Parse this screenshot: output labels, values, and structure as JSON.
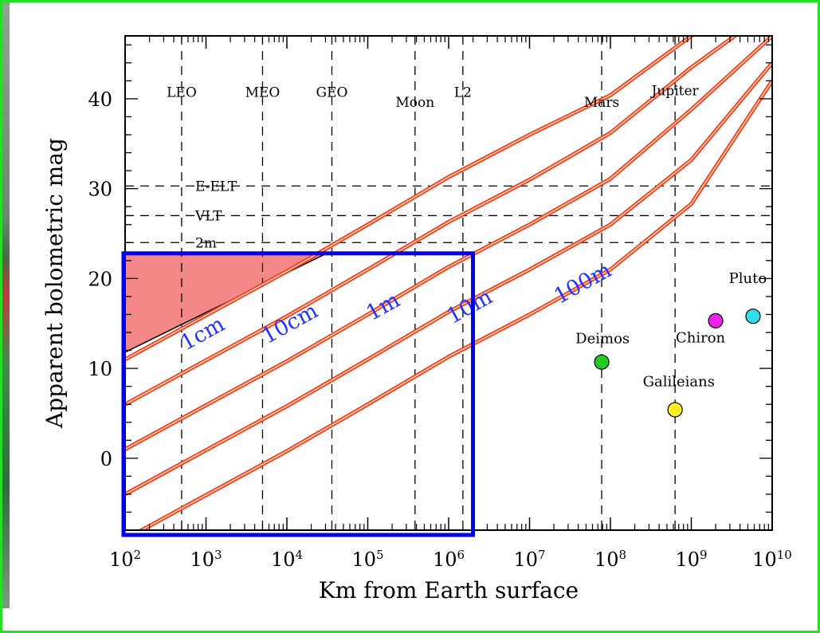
{
  "chart_data": {
    "type": "line",
    "xlabel": "Km from Earth surface",
    "ylabel": "Apparent bolometric mag",
    "xscale": "log",
    "xlim": [
      100,
      10000000000
    ],
    "ylim": [
      -8,
      47
    ],
    "x_ticks": [
      {
        "base": "10",
        "exp": "2"
      },
      {
        "base": "10",
        "exp": "3"
      },
      {
        "base": "10",
        "exp": "4"
      },
      {
        "base": "10",
        "exp": "5"
      },
      {
        "base": "10",
        "exp": "6"
      },
      {
        "base": "10",
        "exp": "7"
      },
      {
        "base": "10",
        "exp": "8"
      },
      {
        "base": "10",
        "exp": "9"
      },
      {
        "base": "10",
        "exp": "10"
      }
    ],
    "y_ticks": [
      "0",
      "10",
      "20",
      "30",
      "40"
    ],
    "y_tick_values": [
      0,
      10,
      20,
      30,
      40
    ],
    "orbit_markers": [
      {
        "label": "LEO",
        "x": 500,
        "label_y": 40.2
      },
      {
        "label": "MEO",
        "x": 5000,
        "label_y": 40.2
      },
      {
        "label": "GEO",
        "x": 36000,
        "label_y": 40.2
      },
      {
        "label": "Moon",
        "x": 384000,
        "label_y": 39.1
      },
      {
        "label": "L2",
        "x": 1500000,
        "label_y": 40.2
      },
      {
        "label": "Mars",
        "x": 78000000,
        "label_y": 39.1
      },
      {
        "label": "Jupiter",
        "x": 630000000,
        "label_y": 40.4
      }
    ],
    "telescope_limits": [
      {
        "label": "E-ELT",
        "mag": 30.3
      },
      {
        "label": "VLT",
        "mag": 27
      },
      {
        "label": "2m",
        "mag": 24
      }
    ],
    "series": [
      {
        "name": "1cm",
        "x": [
          100,
          1000,
          10000,
          100000,
          1000000,
          10000000,
          100000000,
          1000000000,
          10000000000
        ],
        "values": [
          11,
          15.9,
          20.8,
          26,
          31.3,
          36,
          40.4,
          47,
          53
        ]
      },
      {
        "name": "10cm",
        "x": [
          100,
          1000,
          10000,
          100000,
          1000000,
          10000000,
          100000000,
          1000000000,
          10000000000
        ],
        "values": [
          6,
          10.9,
          15.8,
          21,
          26.3,
          31,
          36.2,
          43.5,
          50
        ]
      },
      {
        "name": "1m",
        "x": [
          100,
          1000,
          10000,
          100000,
          1000000,
          10000000,
          100000000,
          1000000000,
          10000000000
        ],
        "values": [
          1,
          5.9,
          10.8,
          16,
          21.3,
          26,
          31.1,
          38.8,
          47
        ]
      },
      {
        "name": "10m",
        "x": [
          100,
          1000,
          10000,
          100000,
          1000000,
          10000000,
          100000000,
          1000000000,
          10000000000
        ],
        "values": [
          -4,
          0.9,
          5.8,
          11,
          16.3,
          21,
          26,
          33.2,
          44
        ]
      },
      {
        "name": "100m",
        "x": [
          100,
          1000,
          10000,
          100000,
          1000000,
          10000000,
          100000000,
          1000000000,
          10000000000
        ],
        "values": [
          -9,
          -4.1,
          0.8,
          6,
          11.3,
          16,
          21,
          28.3,
          42
        ]
      }
    ],
    "series_label_positions": [
      {
        "name": "1cm",
        "x": 1000,
        "y": 13.2
      },
      {
        "name": "10cm",
        "x": 12000,
        "y": 14.3
      },
      {
        "name": "1m",
        "x": 170000,
        "y": 16.2
      },
      {
        "name": "10m",
        "x": 2000000,
        "y": 16.2
      },
      {
        "name": "100m",
        "x": 50000000,
        "y": 18.8
      }
    ],
    "bodies": [
      {
        "label": "Deimos",
        "x": 78000000,
        "y": 10.7,
        "color": "#22cc22",
        "label_x": 80000000,
        "label_y": 12.8
      },
      {
        "label": "Galileians",
        "x": 630000000,
        "y": 5.4,
        "color": "#ffee22",
        "label_x": 700000000,
        "label_y": 8.0
      },
      {
        "label": "Chiron",
        "x": 2000000000,
        "y": 15.3,
        "color": "#ee22ee",
        "label_x": 1300000000,
        "label_y": 12.9
      },
      {
        "label": "Pluto",
        "x": 5800000000,
        "y": 15.8,
        "color": "#33dde8",
        "label_x": 5000000000,
        "label_y": 19.5
      }
    ],
    "shaded_region": {
      "x": [
        100,
        100,
        31000
      ],
      "y": [
        11.8,
        22.8,
        22.8
      ],
      "color": "#f48888"
    },
    "highlight_box": {
      "x": [
        100,
        2000000
      ],
      "y": [
        -8,
        22.8
      ],
      "color": "#0000ee"
    },
    "line_color": "#ff3a1a",
    "label_color": "#2233ff",
    "grid": false,
    "legend": "none"
  }
}
